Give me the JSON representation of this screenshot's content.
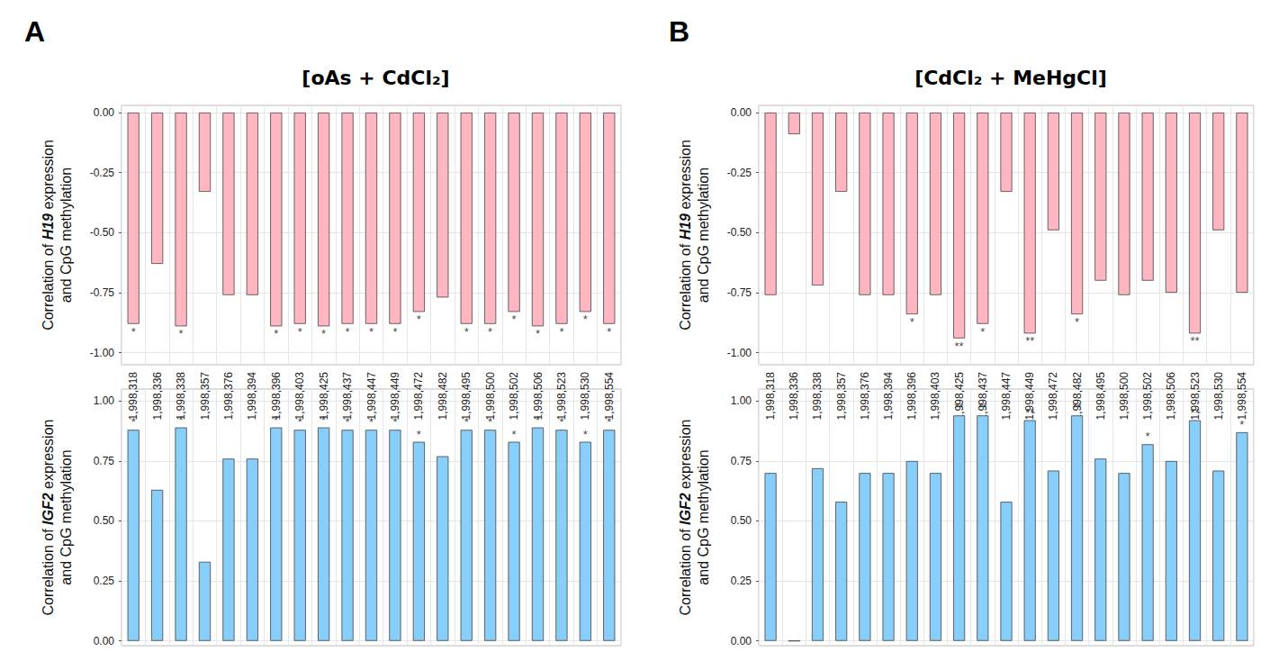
{
  "chart_data": [
    {
      "type": "bar",
      "panel": "A",
      "title": "[oAs + CdCl₂]",
      "ylabel": "Correlation of H19 expression\nand CpG methylation",
      "categories": [
        "1,998,318",
        "1,998,336",
        "1,998,338",
        "1,998,357",
        "1,998,376",
        "1,998,394",
        "1,998,396",
        "1,998,403",
        "1,998,425",
        "1,998,437",
        "1,998,447",
        "1,998,449",
        "1,998,472",
        "1,998,482",
        "1,998,495",
        "1,998,500",
        "1,998,502",
        "1,998,506",
        "1,998,523",
        "1,998,530",
        "1,998,554"
      ],
      "values": [
        -0.88,
        -0.63,
        -0.89,
        -0.33,
        -0.76,
        -0.76,
        -0.89,
        -0.88,
        -0.89,
        -0.88,
        -0.88,
        -0.88,
        -0.83,
        -0.77,
        -0.88,
        -0.88,
        -0.83,
        -0.89,
        -0.88,
        -0.83,
        -0.88
      ],
      "significance": [
        "*",
        null,
        "*",
        null,
        null,
        null,
        "*",
        "*",
        "*",
        "*",
        "*",
        "*",
        "*",
        null,
        "*",
        "*",
        "*",
        "*",
        "*",
        "*",
        "*"
      ],
      "color": "#ffb6c1",
      "ylim": [
        -1.05,
        0.03
      ],
      "yticks": [
        {
          "value": -1,
          "label": "-1.00"
        },
        {
          "value": -0.75,
          "label": "-0.75"
        },
        {
          "value": -0.5,
          "label": "-0.50"
        },
        {
          "value": -0.25,
          "label": "-0.25"
        },
        {
          "value": 0,
          "label": "0.00"
        }
      ],
      "grid": true
    },
    {
      "type": "bar",
      "ylabel": "Correlation of IGF2 expression\nand CpG methylation",
      "categories": [
        "1,998,318",
        "1,998,336",
        "1,998,338",
        "1,998,357",
        "1,998,376",
        "1,998,394",
        "1,998,396",
        "1,998,403",
        "1,998,425",
        "1,998,437",
        "1,998,447",
        "1,998,449",
        "1,998,472",
        "1,998,482",
        "1,998,495",
        "1,998,500",
        "1,998,502",
        "1,998,506",
        "1,998,523",
        "1,998,530",
        "1,998,554"
      ],
      "values": [
        0.88,
        0.63,
        0.89,
        0.33,
        0.76,
        0.76,
        0.89,
        0.88,
        0.89,
        0.88,
        0.88,
        0.88,
        0.83,
        0.77,
        0.88,
        0.88,
        0.83,
        0.89,
        0.88,
        0.83,
        0.88
      ],
      "significance": [
        "*",
        null,
        "*",
        null,
        null,
        null,
        "*",
        "*",
        "*",
        "*",
        "*",
        "*",
        "*",
        null,
        "*",
        "*",
        "*",
        "*",
        "*",
        "*",
        "*"
      ],
      "color": "#87cefa",
      "ylim": [
        -0.02,
        1.05
      ],
      "yticks": [
        {
          "value": 0,
          "label": "0.00"
        },
        {
          "value": 0.25,
          "label": "0.25"
        },
        {
          "value": 0.5,
          "label": "0.50"
        },
        {
          "value": 0.75,
          "label": "0.75"
        },
        {
          "value": 1,
          "label": "1.00"
        }
      ],
      "grid": true,
      "tick_labels": "y"
    },
    {
      "type": "bar",
      "panel": "B",
      "title": "[CdCl₂ + MeHgCl]",
      "ylabel": "Correlation of H19 expression\nand CpG methylation",
      "categories": [
        "1,998,318",
        "1,998,336",
        "1,998,338",
        "1,998,357",
        "1,998,376",
        "1,998,394",
        "1,998,396",
        "1,998,403",
        "1,998,425",
        "1,998,437",
        "1,998,447",
        "1,998,449",
        "1,998,472",
        "1,998,482",
        "1,998,495",
        "1,998,500",
        "1,998,502",
        "1,998,506",
        "1,998,523",
        "1,998,530",
        "1,998,554"
      ],
      "values": [
        -0.76,
        -0.09,
        -0.72,
        -0.33,
        -0.76,
        -0.76,
        -0.84,
        -0.76,
        -0.94,
        -0.88,
        -0.33,
        -0.92,
        -0.49,
        -0.84,
        -0.7,
        -0.76,
        -0.7,
        -0.75,
        -0.92,
        -0.49,
        -0.75
      ],
      "significance": [
        null,
        null,
        null,
        null,
        null,
        null,
        "*",
        null,
        "**",
        "*",
        null,
        "**",
        null,
        "*",
        null,
        null,
        null,
        null,
        "**",
        null,
        null
      ],
      "color": "#ffb6c1",
      "ylim": [
        -1.05,
        0.03
      ],
      "yticks": [
        {
          "value": -1,
          "label": "-1.00"
        },
        {
          "value": -0.75,
          "label": "-0.75"
        },
        {
          "value": -0.5,
          "label": "-0.50"
        },
        {
          "value": -0.25,
          "label": "-0.25"
        },
        {
          "value": 0,
          "label": "0.00"
        }
      ],
      "grid": true
    },
    {
      "type": "bar",
      "ylabel": "Correlation of IGF2 expression\nand CpG methylation",
      "categories": [
        "1,998,318",
        "1,998,336",
        "1,998,338",
        "1,998,357",
        "1,998,376",
        "1,998,394",
        "1,998,396",
        "1,998,403",
        "1,998,425",
        "1,998,437",
        "1,998,447",
        "1,998,449",
        "1,998,472",
        "1,998,482",
        "1,998,495",
        "1,998,500",
        "1,998,502",
        "1,998,506",
        "1,998,523",
        "1,998,530",
        "1,998,554"
      ],
      "values": [
        0.7,
        0,
        0.72,
        0.58,
        0.7,
        0.7,
        0.75,
        0.7,
        0.94,
        0.94,
        0.58,
        0.92,
        0.71,
        0.94,
        0.76,
        0.7,
        0.82,
        0.75,
        0.92,
        0.71,
        0.87
      ],
      "significance": [
        null,
        null,
        null,
        null,
        null,
        null,
        null,
        null,
        "**",
        "**",
        null,
        "**",
        null,
        "**",
        null,
        null,
        "*",
        null,
        "**",
        null,
        "*"
      ],
      "color": "#87cefa",
      "ylim": [
        -0.02,
        1.05
      ],
      "yticks": [
        {
          "value": 0,
          "label": "0.00"
        },
        {
          "value": 0.25,
          "label": "0.25"
        },
        {
          "value": 0.5,
          "label": "0.50"
        },
        {
          "value": 0.75,
          "label": "0.75"
        },
        {
          "value": 1,
          "label": "1.00"
        }
      ],
      "grid": true,
      "tick_labels": "y"
    }
  ]
}
